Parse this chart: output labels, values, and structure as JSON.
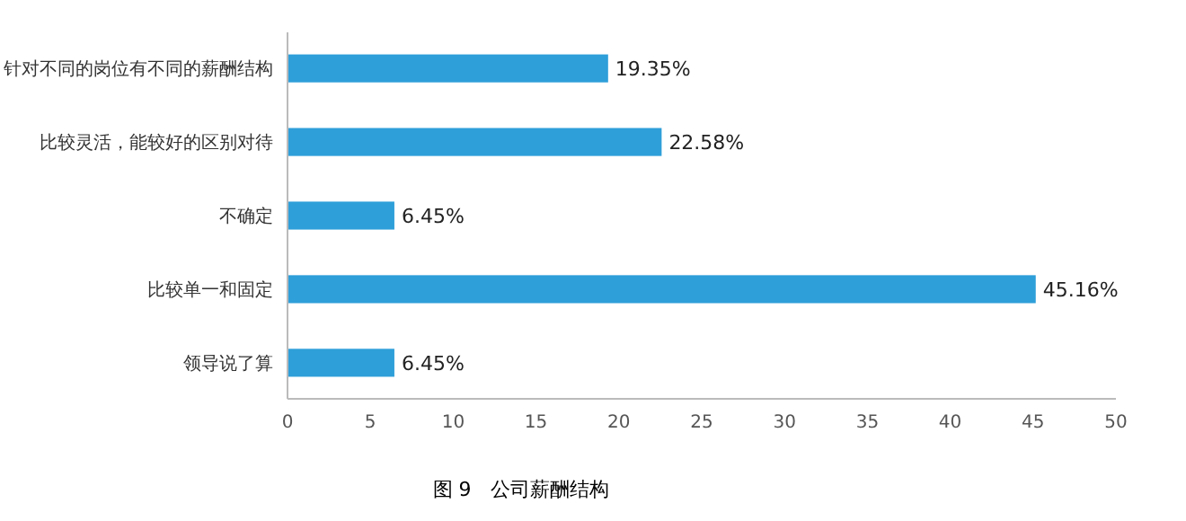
{
  "chart_data": {
    "type": "bar",
    "orientation": "horizontal",
    "title": "图 9　公司薪酬结构",
    "categories": [
      "针对不同的岗位有不同的薪酬结构",
      "比较灵活，能较好的区别对待",
      "不确定",
      "比较单一和固定",
      "领导说了算"
    ],
    "values": [
      19.35,
      22.58,
      6.45,
      45.16,
      6.45
    ],
    "value_labels": [
      "19.35%",
      "22.58%",
      "6.45%",
      "45.16%",
      "6.45%"
    ],
    "color": "#2e9fd9",
    "xlim": [
      0,
      50
    ],
    "xticks": [
      0,
      5,
      10,
      15,
      20,
      25,
      30,
      35,
      40,
      45,
      50
    ],
    "grid": false
  }
}
